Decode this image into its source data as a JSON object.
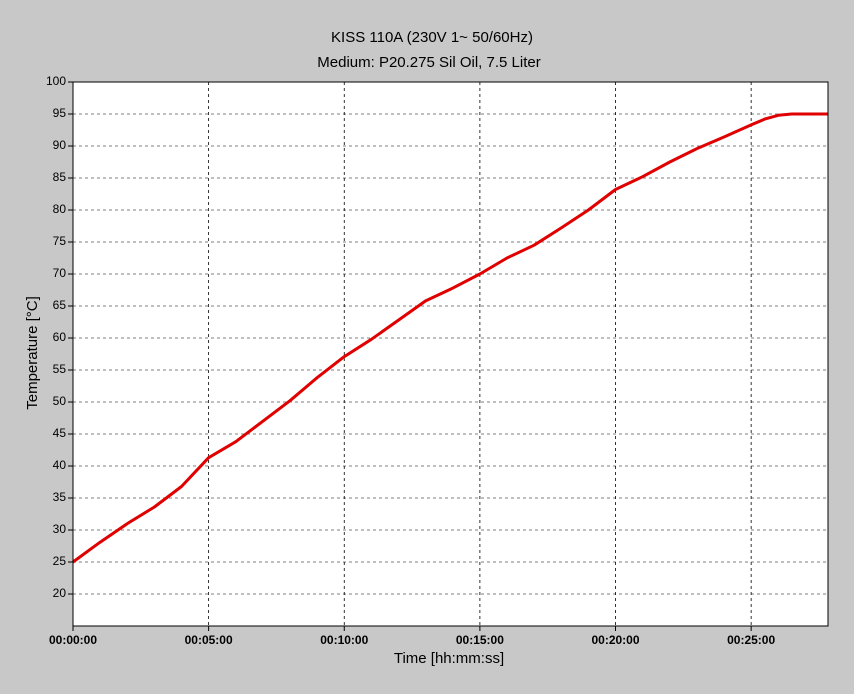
{
  "chart_data": {
    "type": "line",
    "title": "KISS 110A (230V 1~ 50/60Hz)",
    "subtitle": "Medium: P20.275 Sil Oil, 7.5 Liter",
    "x_label": "Time [hh:mm:ss]",
    "y_label": "Temperature [°C]",
    "x": [
      0,
      60,
      120,
      180,
      240,
      300,
      360,
      420,
      480,
      540,
      600,
      660,
      720,
      780,
      840,
      900,
      960,
      1020,
      1080,
      1140,
      1200,
      1260,
      1320,
      1380,
      1440,
      1500,
      1530,
      1560,
      1590,
      1620,
      1670
    ],
    "values": [
      25,
      28.1,
      31,
      33.6,
      36.8,
      41.3,
      43.8,
      47,
      50.2,
      53.8,
      57.1,
      59.8,
      62.8,
      65.8,
      67.8,
      70,
      72.5,
      74.5,
      77.2,
      80,
      83.2,
      85.2,
      87.5,
      89.6,
      91.4,
      93.3,
      94.2,
      94.8,
      95,
      95,
      95
    ],
    "color": "#e00000",
    "xlim": [
      0,
      1670
    ],
    "xticks": [
      {
        "value": 0,
        "label": "00:00:00"
      },
      {
        "value": 300,
        "label": "00:05:00"
      },
      {
        "value": 600,
        "label": "00:10:00"
      },
      {
        "value": 900,
        "label": "00:15:00"
      },
      {
        "value": 1200,
        "label": "00:20:00"
      },
      {
        "value": 1500,
        "label": "00:25:00"
      }
    ],
    "ylim": [
      15,
      100
    ],
    "yticks": [
      20,
      25,
      30,
      35,
      40,
      45,
      50,
      55,
      60,
      65,
      70,
      75,
      80,
      85,
      90,
      95,
      100
    ],
    "grid": true
  }
}
